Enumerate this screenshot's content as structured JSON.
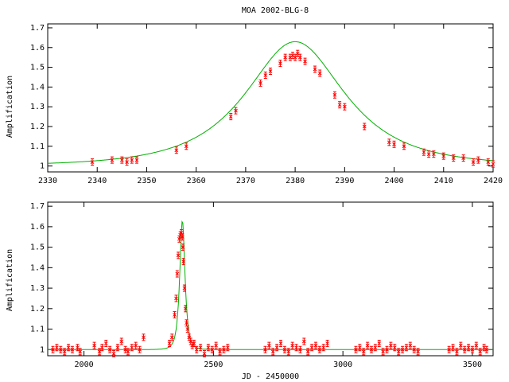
{
  "chart_data": [
    {
      "type": "scatter",
      "title": "MOA 2002-BLG-8",
      "ylabel": "Amplification",
      "xlabel": "",
      "xlim": [
        2330,
        2420
      ],
      "ylim": [
        0.97,
        1.72
      ],
      "xticks": [
        2330,
        2340,
        2350,
        2360,
        2370,
        2380,
        2390,
        2400,
        2410,
        2420
      ],
      "yticks": [
        1,
        1.1,
        1.2,
        1.3,
        1.4,
        1.5,
        1.6,
        1.7
      ],
      "model": {
        "name": "",
        "color": "#00b000",
        "t0": 2380,
        "u0": 0.73,
        "tE": 16
      },
      "points_color": "#ff0000",
      "series": [
        {
          "name": "",
          "x": [
            2339,
            2343,
            2345,
            2346,
            2347,
            2348,
            2356,
            2358,
            2367,
            2368,
            2373,
            2374,
            2375,
            2377,
            2378,
            2379,
            2379.5,
            2380,
            2380.5,
            2381,
            2382,
            2384,
            2385,
            2388,
            2389,
            2390,
            2394,
            2399,
            2400,
            2402,
            2406,
            2407,
            2408,
            2410,
            2412,
            2414,
            2416,
            2417,
            2419,
            2420
          ],
          "y": [
            1.02,
            1.03,
            1.03,
            1.02,
            1.03,
            1.03,
            1.08,
            1.1,
            1.25,
            1.28,
            1.42,
            1.46,
            1.48,
            1.52,
            1.55,
            1.55,
            1.56,
            1.55,
            1.57,
            1.55,
            1.53,
            1.49,
            1.47,
            1.36,
            1.31,
            1.3,
            1.2,
            1.12,
            1.11,
            1.1,
            1.07,
            1.06,
            1.06,
            1.05,
            1.04,
            1.04,
            1.02,
            1.03,
            1.02,
            1.01
          ]
        }
      ]
    },
    {
      "type": "scatter",
      "title": "",
      "ylabel": "Amplification",
      "xlabel": "JD - 2450000",
      "xlim": [
        1860,
        3580
      ],
      "ylim": [
        0.97,
        1.72
      ],
      "xticks": [
        2000,
        2500,
        3000,
        3500
      ],
      "yticks": [
        1,
        1.1,
        1.2,
        1.3,
        1.4,
        1.5,
        1.6,
        1.7
      ],
      "model": {
        "name": "",
        "color": "#00b000",
        "t0": 2380,
        "u0": 0.73,
        "tE": 16
      },
      "points_color": "#ff0000",
      "series": [
        {
          "name": "",
          "x": [
            1880,
            1895,
            1910,
            1925,
            1940,
            1955,
            1975,
            1985,
            2040,
            2060,
            2070,
            2085,
            2100,
            2115,
            2130,
            2145,
            2160,
            2170,
            2185,
            2200,
            2215,
            2230,
            2330,
            2340,
            2350,
            2356,
            2360,
            2364,
            2368,
            2372,
            2376,
            2380,
            2382,
            2384,
            2388,
            2392,
            2396,
            2400,
            2406,
            2412,
            2418,
            2425,
            2435,
            2450,
            2465,
            2480,
            2495,
            2510,
            2525,
            2540,
            2555,
            2700,
            2715,
            2730,
            2745,
            2760,
            2775,
            2790,
            2805,
            2820,
            2835,
            2850,
            2865,
            2880,
            2895,
            2910,
            2925,
            2940,
            3050,
            3065,
            3080,
            3095,
            3110,
            3125,
            3140,
            3155,
            3170,
            3185,
            3200,
            3215,
            3230,
            3245,
            3260,
            3275,
            3290,
            3410,
            3425,
            3440,
            3455,
            3470,
            3485,
            3500,
            3515,
            3530,
            3545,
            3555
          ],
          "y": [
            1.0,
            1.01,
            1.0,
            0.99,
            1.01,
            1.0,
            1.01,
            0.99,
            1.02,
            0.99,
            1.01,
            1.03,
            1.0,
            0.98,
            1.01,
            1.04,
            1.0,
            0.99,
            1.01,
            1.02,
            1.0,
            1.06,
            1.03,
            1.06,
            1.17,
            1.25,
            1.37,
            1.46,
            1.54,
            1.56,
            1.57,
            1.55,
            1.5,
            1.43,
            1.3,
            1.2,
            1.13,
            1.1,
            1.06,
            1.04,
            1.02,
            1.03,
            1.0,
            1.01,
            0.98,
            1.01,
            1.0,
            1.02,
            0.99,
            1.0,
            1.01,
            1.0,
            1.02,
            0.99,
            1.01,
            1.03,
            1.0,
            0.99,
            1.02,
            1.01,
            1.0,
            1.04,
            0.99,
            1.01,
            1.02,
            1.0,
            1.01,
            1.03,
            1.0,
            1.01,
            0.99,
            1.02,
            1.0,
            1.01,
            1.03,
            0.99,
            1.0,
            1.02,
            1.01,
            0.99,
            1.0,
            1.01,
            1.02,
            1.0,
            0.99,
            1.0,
            1.01,
            0.99,
            1.02,
            1.0,
            1.01,
            1.0,
            1.02,
            0.99,
            1.01,
            1.0
          ]
        }
      ]
    }
  ]
}
